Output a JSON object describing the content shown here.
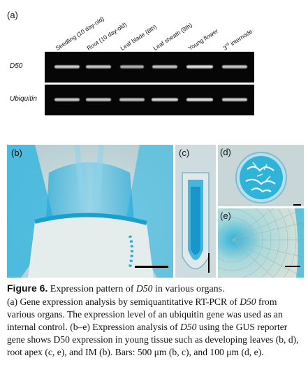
{
  "panel_a": {
    "label": "(a)",
    "lanes": [
      {
        "text": "Seedling (10 day-old)"
      },
      {
        "text": "Root (10 day-old)"
      },
      {
        "text": "Leaf blade (8th)"
      },
      {
        "text": "Leaf sheath (8th)"
      },
      {
        "text": "Young flower"
      },
      {
        "text_prefix": "3",
        "text_sup": "rd",
        "text_suffix": " internode"
      }
    ],
    "rows": [
      {
        "gene": "D50",
        "intensities": [
          0.85,
          0.8,
          0.6,
          0.75,
          1.0,
          0.8
        ]
      },
      {
        "gene": "Ubiquitin",
        "intensities": [
          0.8,
          0.8,
          0.75,
          0.9,
          1.0,
          0.85
        ]
      }
    ]
  },
  "panel_b": {
    "label": "(b)"
  },
  "panel_c": {
    "label": "(c)"
  },
  "panel_d": {
    "label": "(d)"
  },
  "panel_e": {
    "label": "(e)"
  },
  "colors": {
    "gus_blue": "#2fb3d9",
    "tissue_bg": "#c9d6d9",
    "gel_bg": "#060606"
  },
  "caption": {
    "title": "Figure 6.",
    "title_text_pre": "Expression pattern of ",
    "title_gene": "D50",
    "title_text_post": " in various organs.",
    "line_a_pre": "(a) Gene expression analysis by semiquantitative RT-PCR of ",
    "line_a_gene": "D50",
    "line_a_post": " from various organs. The expression level of an ubiquitin gene was used as an internal control. (b–e) Expression analysis of ",
    "line_b_gene": "D50",
    "line_b_post": " using the GUS reporter gene shows D50 expression in young tissue such as developing leaves (b, d), root apex (c, e), and IM (b). Bars: 500 μm (b, c), and 100 μm (d, e)."
  }
}
